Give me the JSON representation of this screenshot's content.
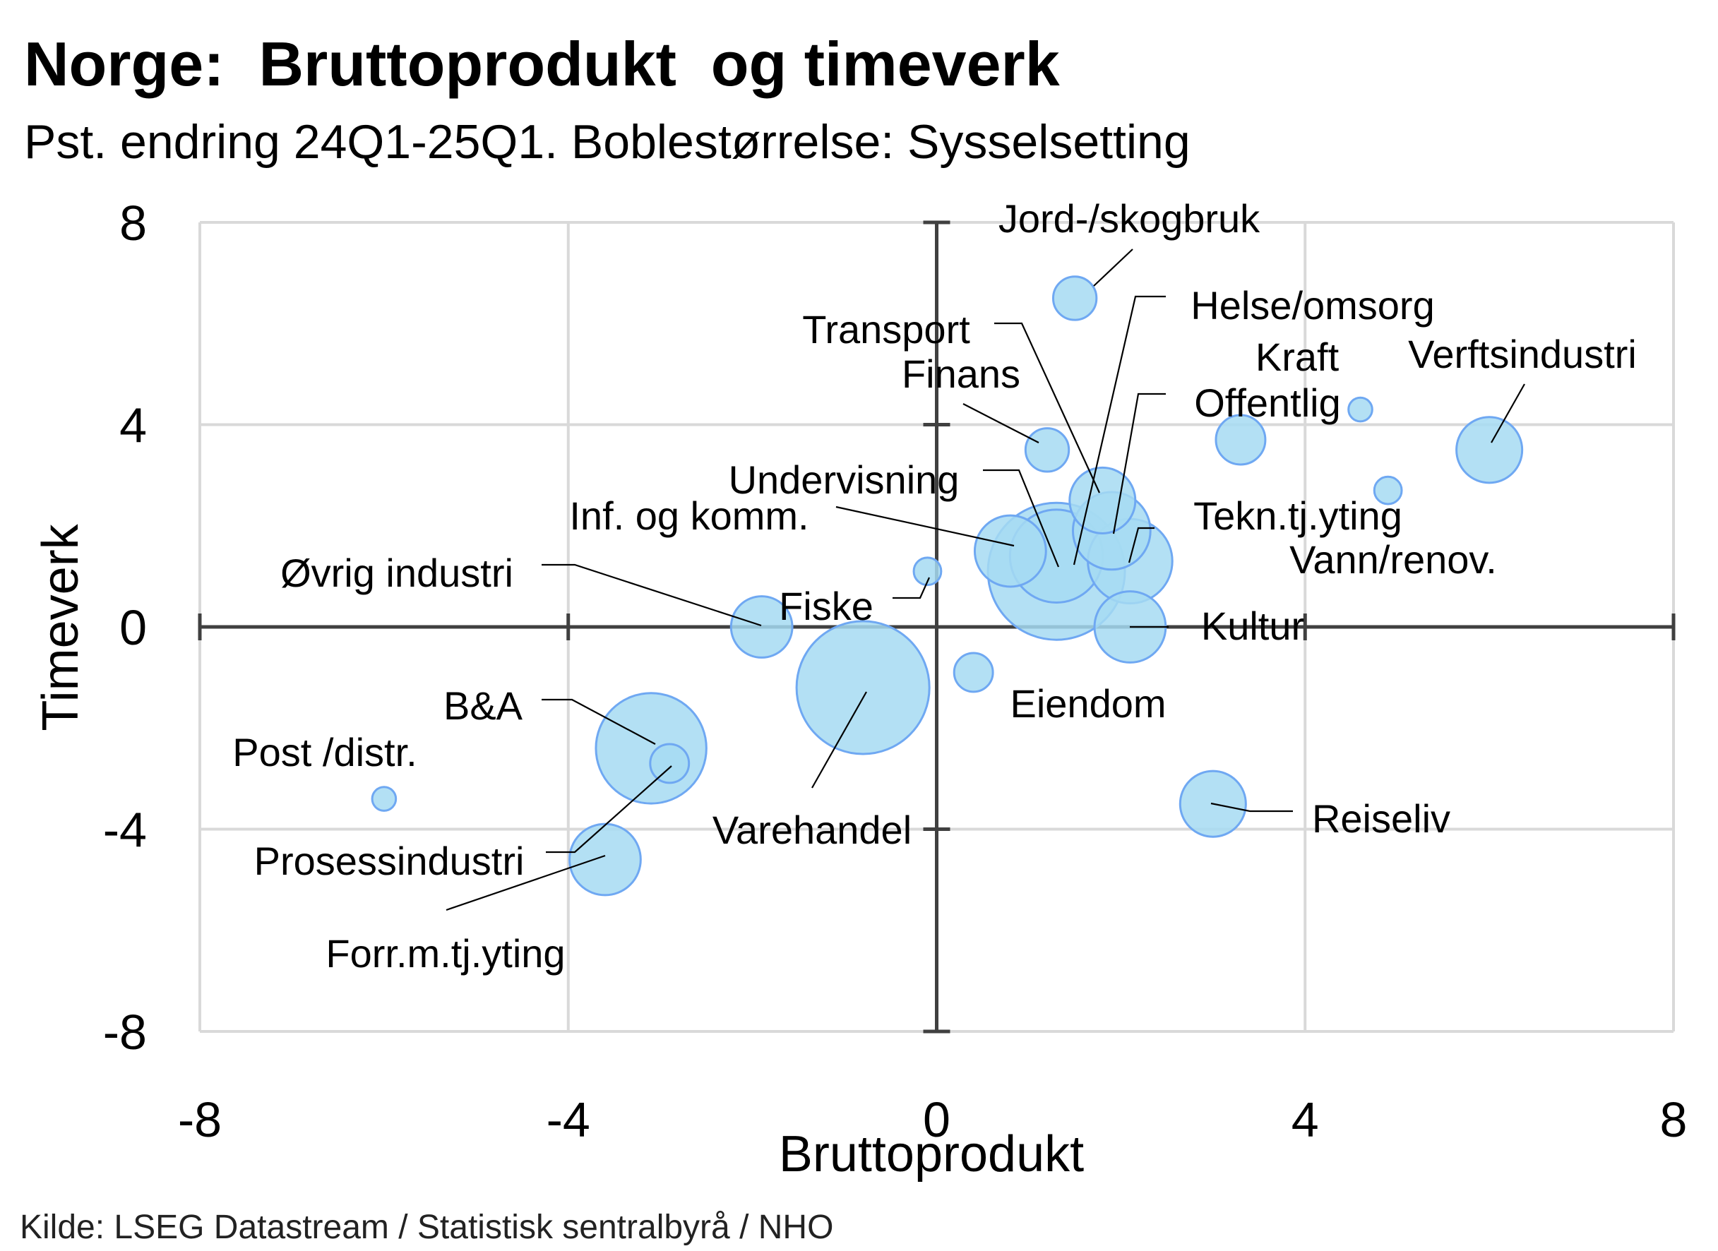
{
  "source": "Kilde: LSEG Datastream / Statistisk sentralbyrå / NHO",
  "colors": {
    "background": "#ffffff",
    "bubble_fill": "#a6daf2",
    "bubble_stroke": "#6fa8f2",
    "axis": "#404040",
    "grid": "#d9d9d9",
    "leader_line": "#000000"
  },
  "chart_data": {
    "type": "scatter",
    "bubble": true,
    "title": "Norge:  Bruttoprodukt  og timeverk",
    "subtitle": "Pst. endring 24Q1-25Q1. Boblestørrelse: Sysselsetting",
    "xlabel": "Bruttoprodukt",
    "ylabel": "Timeverk",
    "xlim": [
      -8,
      8
    ],
    "ylim": [
      -8,
      8
    ],
    "x_ticks": [
      -8,
      -4,
      0,
      4,
      8
    ],
    "y_ticks": [
      -8,
      -4,
      0,
      4,
      8
    ],
    "x_tick_labels": [
      "-8",
      "-4",
      "0",
      "4",
      "8"
    ],
    "y_tick_labels": [
      "-8",
      "-4",
      "0",
      "4",
      "8"
    ],
    "grid": true,
    "legend": false,
    "points": [
      {
        "label": "Jord-/skogbruk",
        "x": 1.5,
        "y": 6.5,
        "size": 10
      },
      {
        "label": "Helse/omsorg",
        "x": 1.3,
        "y": 1.1,
        "size": 100
      },
      {
        "label": "Transport",
        "x": 1.8,
        "y": 2.5,
        "size": 23
      },
      {
        "label": "Finans",
        "x": 1.2,
        "y": 3.5,
        "size": 10
      },
      {
        "label": "Kraft",
        "x": 4.6,
        "y": 4.3,
        "size": 3
      },
      {
        "label": "Verftsindustri",
        "x": 6.0,
        "y": 3.5,
        "size": 23
      },
      {
        "label": "Offentlig",
        "x": 1.9,
        "y": 1.9,
        "size": 32
      },
      {
        "label": "Undervisning",
        "x": 1.3,
        "y": 1.4,
        "size": 46
      },
      {
        "label": "Inf. og komm.",
        "x": 0.8,
        "y": 1.5,
        "size": 27
      },
      {
        "label": "Tekn.tj.yting",
        "x": 2.1,
        "y": 1.3,
        "size": 38
      },
      {
        "label": "Vann/renov.",
        "x": 4.9,
        "y": 2.7,
        "size": 4
      },
      {
        "label": "Øvrig industri",
        "x": -1.9,
        "y": 0.0,
        "size": 20
      },
      {
        "label": "Fiske",
        "x": -0.1,
        "y": 1.1,
        "size": 4
      },
      {
        "label": "Kultur",
        "x": 2.1,
        "y": 0.0,
        "size": 27
      },
      {
        "label": "Eiendom",
        "x": 0.4,
        "y": -0.9,
        "size": 8
      },
      {
        "label": "Varehandel",
        "x": -0.8,
        "y": -1.2,
        "size": 94
      },
      {
        "label": "B&A",
        "x": -3.1,
        "y": -2.4,
        "size": 65
      },
      {
        "label": "Post /distr.",
        "x": -6.0,
        "y": -3.4,
        "size": 3
      },
      {
        "label": "Prosessindustri",
        "x": -2.9,
        "y": -2.7,
        "size": 8
      },
      {
        "label": "Forr.m.tj.yting",
        "x": -3.6,
        "y": -4.6,
        "size": 27
      },
      {
        "label": "Reiseliv",
        "x": 3.0,
        "y": -3.5,
        "size": 23
      },
      {
        "x": 3.3,
        "y": 3.7,
        "size": 13
      }
    ]
  }
}
